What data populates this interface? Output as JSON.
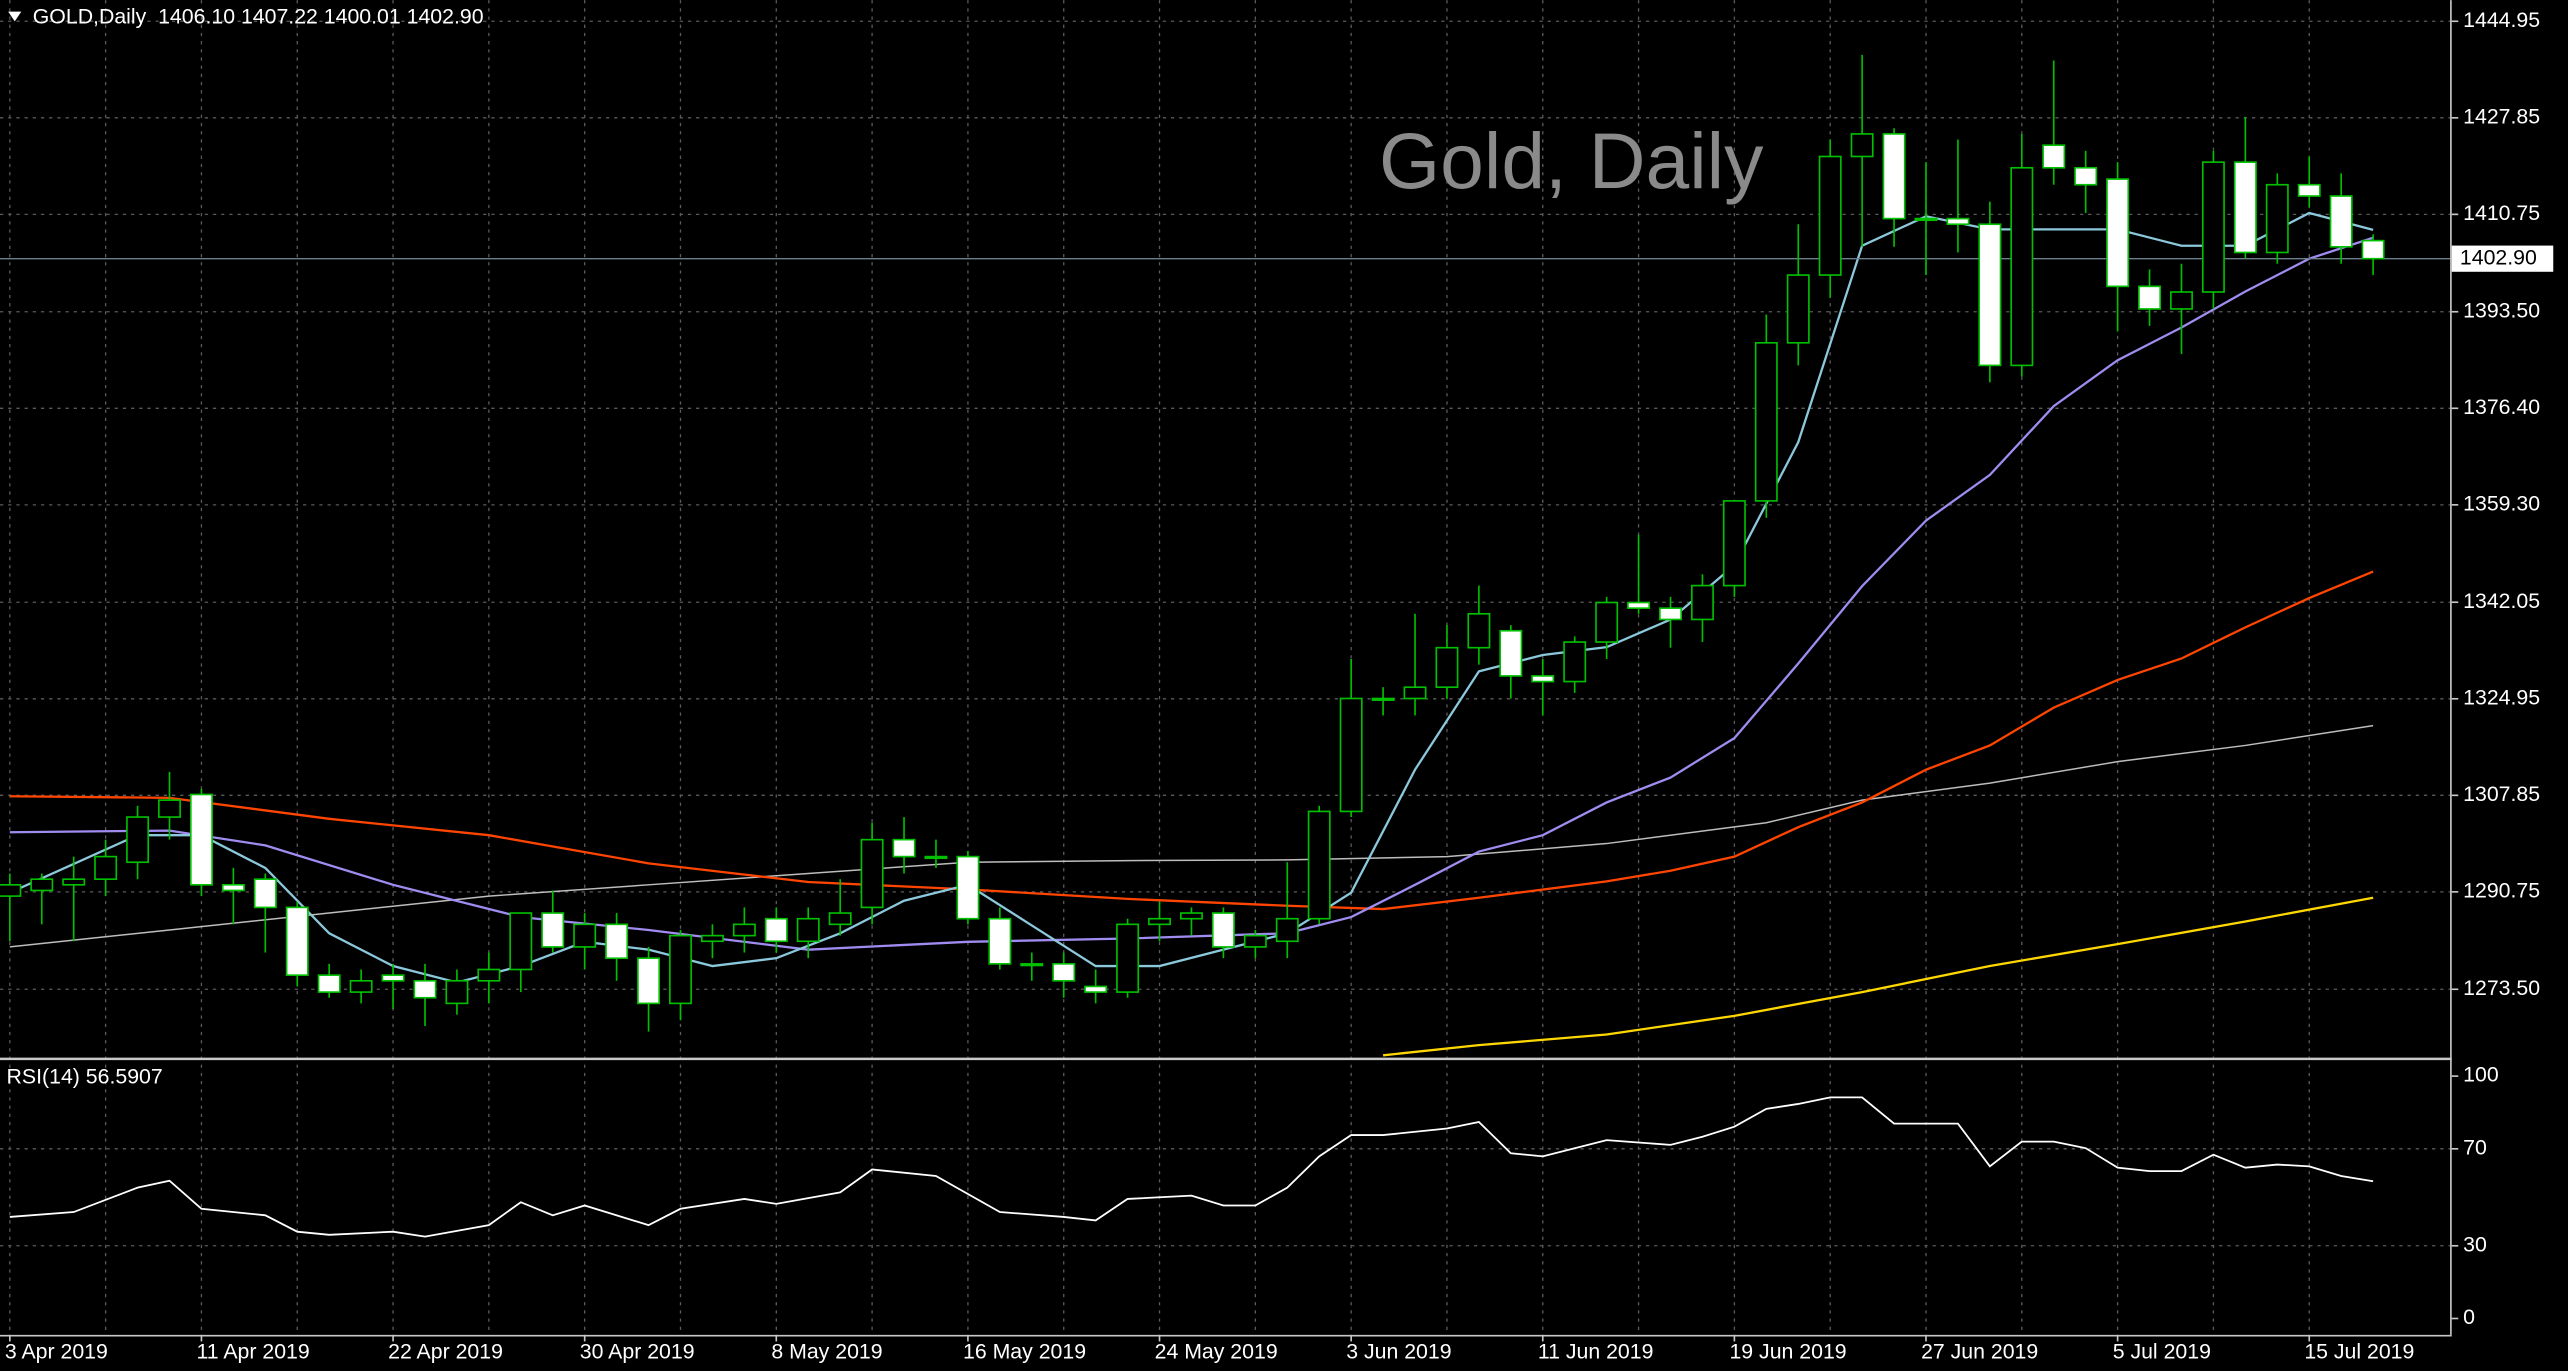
{
  "chart_data": {
    "type": "candlestick",
    "header": "GOLD,Daily  1406.10 1407.22 1400.01 1402.90",
    "title": "Gold, Daily",
    "categories": [
      "3 Apr 2019",
      null,
      null,
      null,
      null,
      null,
      "11 Apr 2019",
      null,
      null,
      null,
      null,
      null,
      "22 Apr 2019",
      null,
      null,
      null,
      null,
      null,
      "30 Apr 2019",
      null,
      null,
      null,
      null,
      null,
      "8 May 2019",
      null,
      null,
      null,
      null,
      null,
      "16 May 2019",
      null,
      null,
      null,
      null,
      null,
      "24 May 2019",
      null,
      null,
      null,
      null,
      null,
      "3 Jun 2019",
      null,
      null,
      null,
      null,
      null,
      "11 Jun 2019",
      null,
      null,
      null,
      null,
      null,
      "19 Jun 2019",
      null,
      null,
      null,
      null,
      null,
      "27 Jun 2019",
      null,
      null,
      null,
      null,
      null,
      "5 Jul 2019",
      null,
      null,
      null,
      null,
      null,
      "15 Jul 2019",
      null,
      null
    ],
    "open": [
      1290,
      1291,
      1292,
      1293,
      1296,
      1304,
      1308,
      1292,
      1293,
      1288,
      1276,
      1273,
      1276,
      1275,
      1271,
      1275,
      1277,
      1287,
      1281,
      1285,
      1279,
      1271,
      1282,
      1283,
      1286,
      1282,
      1285,
      1288,
      1300,
      1297,
      1297,
      1286,
      1278,
      1278,
      1274,
      1273,
      1285,
      1286,
      1287,
      1281,
      1282,
      1286,
      1305,
      1325,
      1325,
      1327,
      1334,
      1337,
      1329,
      1328,
      1335,
      1342,
      1341,
      1339,
      1345,
      1360,
      1388,
      1400,
      1421,
      1425,
      1410,
      1410,
      1409,
      1384,
      1423,
      1419,
      1417,
      1398,
      1394,
      1397,
      1420,
      1404,
      1416,
      1414,
      1406.1
    ],
    "high": [
      1294,
      1294,
      1297,
      1300,
      1306,
      1312,
      1309,
      1295,
      1294,
      1289,
      1278,
      1277,
      1278,
      1278,
      1277,
      1280,
      1287,
      1291,
      1287,
      1287,
      1281,
      1284,
      1285,
      1288,
      1288,
      1288,
      1293,
      1303,
      1304,
      1300,
      1298,
      1288,
      1280,
      1280,
      1277,
      1286,
      1289,
      1288,
      1288,
      1284,
      1296,
      1306,
      1332,
      1327,
      1340,
      1338,
      1345,
      1338,
      1332,
      1336,
      1343,
      1354,
      1343,
      1347,
      1360,
      1393,
      1409,
      1424,
      1439,
      1426,
      1420,
      1424,
      1413,
      1425,
      1438,
      1422,
      1420,
      1401,
      1402,
      1422,
      1428,
      1418,
      1421,
      1418,
      1407.22
    ],
    "low": [
      1282,
      1285,
      1282,
      1290,
      1293,
      1300,
      1290,
      1285,
      1280,
      1274,
      1272,
      1271,
      1270,
      1267,
      1269,
      1271,
      1273,
      1280,
      1277,
      1275,
      1266,
      1268,
      1279,
      1280,
      1280,
      1279,
      1283,
      1285,
      1294,
      1295,
      1285,
      1277,
      1275,
      1272,
      1271,
      1272,
      1282,
      1283,
      1279,
      1279,
      1279,
      1285,
      1304,
      1322,
      1322,
      1325,
      1331,
      1325,
      1322,
      1326,
      1332,
      1340,
      1334,
      1335,
      1343,
      1357,
      1384,
      1396,
      1405,
      1405,
      1400,
      1404,
      1381,
      1382,
      1416,
      1411,
      1390,
      1391,
      1386,
      1394,
      1403,
      1402,
      1412,
      1402,
      1400.01
    ],
    "close": [
      1292,
      1293,
      1293,
      1297,
      1304,
      1307,
      1292,
      1291,
      1288,
      1276,
      1273,
      1275,
      1275,
      1272,
      1275,
      1277,
      1287,
      1281,
      1285,
      1279,
      1271,
      1283,
      1283,
      1285,
      1282,
      1286,
      1287,
      1300,
      1297,
      1297,
      1286,
      1278,
      1278,
      1275,
      1273,
      1285,
      1286,
      1287,
      1281,
      1283,
      1286,
      1305,
      1325,
      1325,
      1327,
      1334,
      1340,
      1329,
      1328,
      1335,
      1342,
      1341,
      1339,
      1345,
      1360,
      1388,
      1400,
      1421,
      1425,
      1410,
      1410,
      1409,
      1384,
      1419,
      1419,
      1416,
      1398,
      1394,
      1397,
      1420,
      1404,
      1416,
      1414,
      1405,
      1402.9
    ],
    "up_color": "#00c000",
    "down_color": "#ffffff",
    "series": [
      {
        "color": "#ffd700",
        "x": [
          43,
          46,
          50,
          54,
          58,
          62,
          66,
          70,
          74
        ],
        "values": [
          1261.8,
          1263.6,
          1265.5,
          1268.8,
          1273,
          1277.6,
          1281.5,
          1285.5,
          1289.7
        ]
      },
      {
        "color": "#bdbdbd",
        "x": [
          0,
          5,
          10,
          15,
          20,
          25,
          30,
          35,
          40,
          45,
          50,
          55,
          58,
          62,
          66,
          70,
          74
        ],
        "values": [
          1281,
          1284,
          1287,
          1290,
          1292,
          1294,
          1296,
          1296.3,
          1296.4,
          1297,
          1299.3,
          1303,
          1307,
          1310,
          1313.8,
          1316.7,
          1320.2
        ]
      },
      {
        "color": "#ff4500",
        "x": [
          0,
          5,
          10,
          15,
          20,
          25,
          30,
          35,
          40,
          43,
          46,
          50,
          52,
          54,
          56,
          58,
          60,
          62,
          64,
          66,
          68,
          70,
          72,
          74
        ],
        "values": [
          1307.7,
          1307.4,
          1303.7,
          1300.8,
          1295.8,
          1292.5,
          1291.2,
          1289.5,
          1288.3,
          1287.7,
          1289.7,
          1292.6,
          1294.5,
          1297,
          1302.2,
          1306.6,
          1312.4,
          1316.7,
          1323.4,
          1328.3,
          1332.1,
          1337.6,
          1342.8,
          1347.5
        ]
      },
      {
        "color": "#a08cf0",
        "x": [
          0,
          5,
          8,
          12,
          16,
          20,
          25,
          30,
          35,
          40,
          42,
          44,
          46,
          48,
          50,
          52,
          54,
          56,
          58,
          60,
          62,
          64,
          66,
          68,
          70,
          72,
          74
        ],
        "values": [
          1301.3,
          1301.6,
          1299,
          1292,
          1286.3,
          1284,
          1280.5,
          1281.9,
          1282.5,
          1283.4,
          1286.3,
          1292,
          1297.9,
          1300.8,
          1306.6,
          1311,
          1318,
          1331.2,
          1344.9,
          1356.5,
          1364.6,
          1376.8,
          1384.9,
          1390.7,
          1397.1,
          1402.9,
          1406.6
        ]
      },
      {
        "color": "#8cc8dc",
        "x": [
          0,
          4,
          6,
          8,
          10,
          12,
          14,
          16,
          18,
          20,
          22,
          24,
          26,
          28,
          30,
          32,
          34,
          36,
          38,
          40,
          42,
          44,
          46,
          48,
          50,
          52,
          54,
          56,
          58,
          60,
          62,
          64,
          66,
          68,
          70,
          72,
          74
        ],
        "values": [
          1290.6,
          1300.8,
          1300.8,
          1295,
          1283.4,
          1277.6,
          1274.7,
          1277.6,
          1281.9,
          1280.5,
          1277.6,
          1279,
          1283.4,
          1289.2,
          1292,
          1284.8,
          1277.6,
          1277.6,
          1280.5,
          1283.4,
          1290.6,
          1312.4,
          1329.8,
          1332.7,
          1334.1,
          1339,
          1348.6,
          1370.4,
          1405.2,
          1410.4,
          1408.1,
          1408.1,
          1408.1,
          1405.2,
          1405.2,
          1411,
          1408
        ]
      }
    ],
    "current_price": 1402.9,
    "current_price_label": "1402.90",
    "ylim": [
      1261.6,
      1448.7
    ],
    "yticks": [
      1444.95,
      1427.85,
      1410.75,
      {
        "value": 1393.5,
        "label": "1393.50"
      },
      {
        "value": 1376.4,
        "label": "1376.40"
      },
      {
        "value": 1359.3,
        "label": "1359.30"
      },
      1342.05,
      1324.95,
      1307.85,
      1290.75,
      {
        "value": 1273.5,
        "label": "1273.50"
      }
    ],
    "grid": true,
    "rsi": {
      "label": "RSI(14) 56.5907",
      "color": "#ffffff",
      "x": [
        0,
        2,
        4,
        5,
        6,
        8,
        9,
        10,
        12,
        13,
        15,
        16,
        17,
        18,
        20,
        21,
        23,
        24,
        26,
        27,
        29,
        31,
        33,
        34,
        35,
        37,
        38,
        39,
        40,
        41,
        42,
        43,
        45,
        46,
        47,
        48,
        50,
        52,
        53,
        54,
        55,
        56,
        57,
        58,
        59,
        61,
        62,
        63,
        64,
        65,
        66,
        67,
        68,
        69,
        70,
        71,
        72,
        73,
        74
      ],
      "values": [
        41.9,
        43.9,
        54,
        56.8,
        45.3,
        42.6,
        35.8,
        34.5,
        35.8,
        33.8,
        38.5,
        48,
        42.6,
        46.6,
        38.5,
        45.3,
        49.3,
        47.3,
        52,
        61.5,
        58.8,
        43.9,
        41.9,
        40.5,
        49.3,
        50.7,
        46.6,
        46.6,
        54,
        66.9,
        75.7,
        75.7,
        78.4,
        81.1,
        68.2,
        66.9,
        73.6,
        71.6,
        75,
        79.1,
        86.5,
        88.5,
        91.2,
        91.2,
        80.4,
        80.4,
        62.8,
        73,
        73,
        70.3,
        62.2,
        60.8,
        60.8,
        67.6,
        62.2,
        63.5,
        62.8,
        58.8,
        56.59
      ],
      "ylim": [
        0,
        100
      ],
      "yticks": [
        100,
        70,
        30,
        0
      ]
    }
  }
}
